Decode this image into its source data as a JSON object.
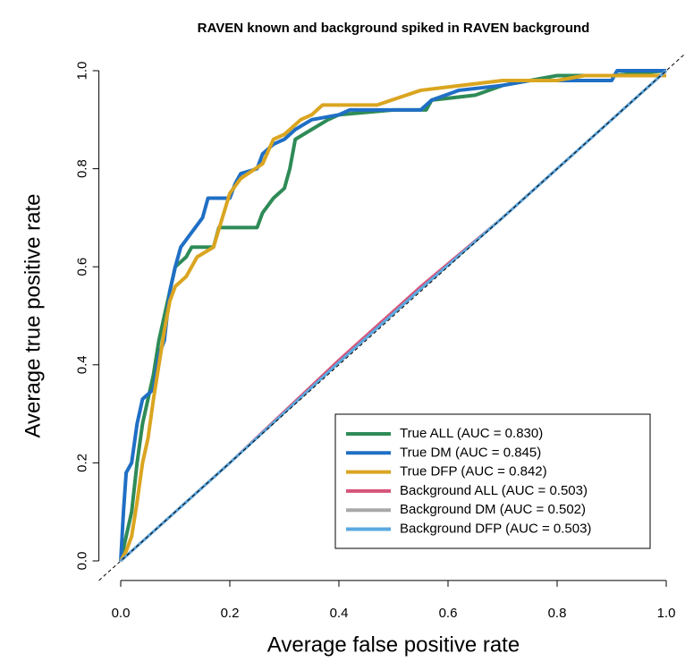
{
  "chart_data": {
    "type": "line",
    "title": "RAVEN known and background spiked in RAVEN background",
    "x_label": "Average false positive rate",
    "y_label": "Average true positive rate",
    "xlim": [
      -0.04,
      1.04
    ],
    "ylim": [
      -0.04,
      1.04
    ],
    "xticks": [
      {
        "value": 0,
        "label": "0.0"
      },
      {
        "value": 0.2,
        "label": "0.2"
      },
      {
        "value": 0.4,
        "label": "0.4"
      },
      {
        "value": 0.6,
        "label": "0.6"
      },
      {
        "value": 0.8,
        "label": "0.8"
      },
      {
        "value": 1,
        "label": "1.0"
      }
    ],
    "yticks": [
      {
        "value": 0,
        "label": "0.0"
      },
      {
        "value": 0.2,
        "label": "0.2"
      },
      {
        "value": 0.4,
        "label": "0.4"
      },
      {
        "value": 0.6,
        "label": "0.6"
      },
      {
        "value": 0.8,
        "label": "0.8"
      },
      {
        "value": 1,
        "label": "1.0"
      }
    ],
    "reference_line": "dashed",
    "legend_position": "bottom-right",
    "series": [
      {
        "name": "True ALL (AUC = 0.830)",
        "color": "#2e8b57",
        "x": [
          0,
          0.01,
          0.02,
          0.03,
          0.04,
          0.05,
          0.06,
          0.07,
          0.08,
          0.09,
          0.1,
          0.12,
          0.13,
          0.17,
          0.18,
          0.25,
          0.26,
          0.28,
          0.3,
          0.31,
          0.32,
          0.35,
          0.38,
          0.4,
          0.5,
          0.56,
          0.57,
          0.65,
          0.7,
          0.8,
          0.9,
          1
        ],
        "values": [
          0,
          0.05,
          0.1,
          0.2,
          0.28,
          0.33,
          0.38,
          0.45,
          0.5,
          0.55,
          0.6,
          0.62,
          0.64,
          0.64,
          0.68,
          0.68,
          0.71,
          0.74,
          0.76,
          0.8,
          0.86,
          0.88,
          0.9,
          0.91,
          0.92,
          0.92,
          0.94,
          0.95,
          0.97,
          0.99,
          0.99,
          1
        ]
      },
      {
        "name": "True DM (AUC = 0.845)",
        "color": "#1f6fc5",
        "x": [
          0,
          0.005,
          0.01,
          0.02,
          0.03,
          0.04,
          0.06,
          0.07,
          0.08,
          0.09,
          0.1,
          0.11,
          0.15,
          0.16,
          0.2,
          0.21,
          0.22,
          0.25,
          0.26,
          0.28,
          0.3,
          0.32,
          0.35,
          0.4,
          0.42,
          0.55,
          0.57,
          0.62,
          0.7,
          0.75,
          0.9,
          0.91,
          1
        ],
        "values": [
          0,
          0.1,
          0.18,
          0.2,
          0.28,
          0.33,
          0.35,
          0.42,
          0.45,
          0.55,
          0.6,
          0.64,
          0.7,
          0.74,
          0.74,
          0.77,
          0.79,
          0.8,
          0.83,
          0.85,
          0.86,
          0.88,
          0.9,
          0.91,
          0.92,
          0.92,
          0.94,
          0.96,
          0.97,
          0.98,
          0.98,
          1,
          1
        ]
      },
      {
        "name": "True DFP (AUC = 0.842)",
        "color": "#daa520",
        "x": [
          0,
          0.01,
          0.02,
          0.03,
          0.04,
          0.05,
          0.06,
          0.07,
          0.08,
          0.09,
          0.1,
          0.12,
          0.14,
          0.17,
          0.2,
          0.22,
          0.26,
          0.28,
          0.3,
          0.33,
          0.35,
          0.37,
          0.47,
          0.55,
          0.7,
          0.8,
          0.85,
          1
        ],
        "values": [
          0,
          0.02,
          0.05,
          0.12,
          0.2,
          0.25,
          0.33,
          0.4,
          0.47,
          0.53,
          0.56,
          0.58,
          0.62,
          0.64,
          0.75,
          0.78,
          0.81,
          0.86,
          0.87,
          0.9,
          0.91,
          0.93,
          0.93,
          0.96,
          0.98,
          0.98,
          0.99,
          0.99
        ]
      },
      {
        "name": "Background ALL (AUC = 0.503)",
        "color": "#d6537a",
        "x": [
          0,
          0.2,
          0.4,
          0.55,
          0.7,
          1
        ],
        "values": [
          0,
          0.2,
          0.41,
          0.56,
          0.7,
          1
        ]
      },
      {
        "name": "Background DM (AUC = 0.502)",
        "color": "#a8a8a8",
        "x": [
          0,
          0.2,
          0.4,
          0.55,
          0.7,
          1
        ],
        "values": [
          0,
          0.2,
          0.405,
          0.555,
          0.7,
          1
        ]
      },
      {
        "name": "Background DFP (AUC = 0.503)",
        "color": "#5aa8e0",
        "x": [
          0,
          0.2,
          0.4,
          0.55,
          0.7,
          1
        ],
        "values": [
          0,
          0.2,
          0.405,
          0.555,
          0.7,
          1
        ]
      }
    ]
  }
}
